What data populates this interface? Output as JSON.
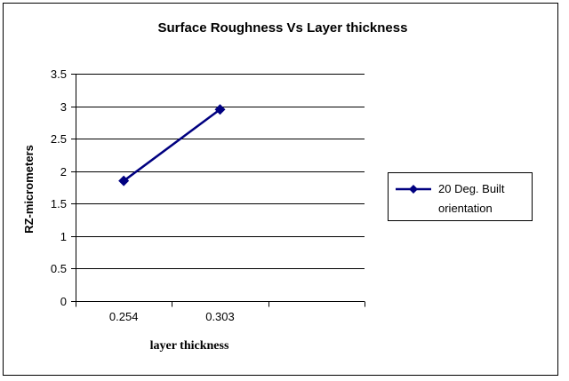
{
  "chart_data": {
    "type": "line",
    "title": "Surface Roughness Vs Layer thickness",
    "xlabel": "layer thickness",
    "ylabel": "RZ-micrometers",
    "categories": [
      "0.254",
      "0.303"
    ],
    "category_slots": 3,
    "series": [
      {
        "name": "20 Deg. Built orientation",
        "values": [
          1.85,
          2.95
        ],
        "color": "#000080",
        "marker": "diamond"
      }
    ],
    "ylim": [
      0,
      3.5
    ],
    "y_ticks": [
      "0",
      "0.5",
      "1",
      "1.5",
      "2",
      "2.5",
      "3",
      "3.5"
    ],
    "grid": true,
    "legend_position": "right"
  }
}
